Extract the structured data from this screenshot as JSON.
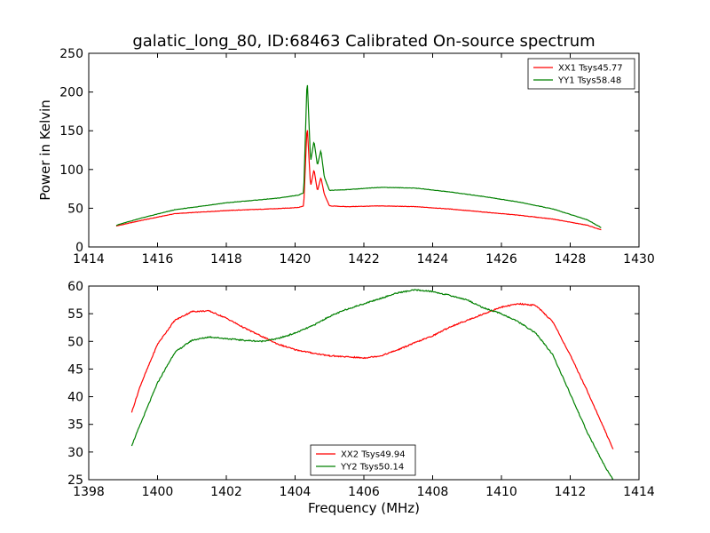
{
  "chart_data": [
    {
      "type": "line",
      "title": "galatic_long_80, ID:68463 Calibrated On-source spectrum",
      "xlabel": "",
      "ylabel": "Power in Kelvin",
      "xlim": [
        1414,
        1430
      ],
      "ylim": [
        0,
        250
      ],
      "xticks": [
        "1414",
        "1416",
        "1418",
        "1420",
        "1422",
        "1424",
        "1426",
        "1428",
        "1430"
      ],
      "yticks": [
        "0",
        "50",
        "100",
        "150",
        "200",
        "250"
      ],
      "grid": false,
      "legend_position": "top-right",
      "series": [
        {
          "name": "XX1 Tsys45.77",
          "color": "#ff0000",
          "x": [
            1414.8,
            1415.5,
            1416.5,
            1418,
            1419.5,
            1420.1,
            1420.25,
            1420.35,
            1420.45,
            1420.55,
            1420.65,
            1420.75,
            1420.85,
            1421.0,
            1421.5,
            1422.5,
            1423.5,
            1424.5,
            1425.5,
            1426.5,
            1427.5,
            1428.5,
            1428.9
          ],
          "y": [
            27,
            34,
            43,
            47,
            49.5,
            51,
            53,
            158,
            78,
            100,
            72,
            90,
            68,
            53,
            52,
            53,
            52,
            49,
            45,
            41,
            36,
            28,
            22
          ]
        },
        {
          "name": "YY1 Tsys58.48",
          "color": "#008000",
          "x": [
            1414.8,
            1415.5,
            1416.5,
            1418,
            1419.5,
            1420.1,
            1420.25,
            1420.35,
            1420.45,
            1420.55,
            1420.65,
            1420.75,
            1420.85,
            1421.0,
            1421.5,
            1422.5,
            1423.5,
            1424.5,
            1425.5,
            1426.5,
            1427.5,
            1428.5,
            1428.9
          ],
          "y": [
            28,
            37,
            48,
            57,
            63,
            67,
            70,
            219,
            110,
            137,
            105,
            125,
            90,
            73,
            74,
            77,
            76,
            71,
            65,
            58,
            49,
            35,
            25
          ]
        }
      ]
    },
    {
      "type": "line",
      "title": "",
      "xlabel": "Frequency (MHz)",
      "ylabel": "",
      "xlim": [
        1398,
        1414
      ],
      "ylim": [
        25,
        60
      ],
      "xticks": [
        "1398",
        "1400",
        "1402",
        "1404",
        "1406",
        "1408",
        "1410",
        "1412",
        "1414"
      ],
      "yticks": [
        "25",
        "30",
        "35",
        "40",
        "45",
        "50",
        "55",
        "60"
      ],
      "grid": false,
      "legend_position": "bottom-center",
      "series": [
        {
          "name": "XX2 Tsys49.94",
          "color": "#ff0000",
          "x": [
            1399.25,
            1399.5,
            1400.0,
            1400.5,
            1401.0,
            1401.5,
            1402.0,
            1402.5,
            1403.0,
            1403.5,
            1404.0,
            1404.5,
            1405.0,
            1405.5,
            1406.0,
            1406.5,
            1407.0,
            1407.5,
            1408.0,
            1408.5,
            1409.0,
            1409.5,
            1410.0,
            1410.5,
            1411.0,
            1411.5,
            1412.0,
            1412.5,
            1413.0,
            1413.25
          ],
          "y": [
            37.2,
            42.0,
            49.5,
            53.8,
            55.4,
            55.5,
            54.2,
            52.5,
            51.0,
            49.5,
            48.5,
            47.9,
            47.4,
            47.2,
            47.0,
            47.4,
            48.5,
            49.8,
            51.0,
            52.6,
            53.8,
            55.0,
            56.2,
            56.8,
            56.5,
            53.5,
            47.5,
            41.0,
            34.0,
            30.5
          ]
        },
        {
          "name": "YY2 Tsys50.14",
          "color": "#008000",
          "x": [
            1399.25,
            1399.5,
            1400.0,
            1400.5,
            1401.0,
            1401.5,
            1402.0,
            1402.5,
            1403.0,
            1403.5,
            1404.0,
            1404.5,
            1405.0,
            1405.5,
            1406.0,
            1406.5,
            1407.0,
            1407.5,
            1408.0,
            1408.5,
            1409.0,
            1409.5,
            1410.0,
            1410.5,
            1411.0,
            1411.5,
            1412.0,
            1412.5,
            1413.0,
            1413.25
          ],
          "y": [
            31.2,
            35.0,
            42.5,
            48.0,
            50.2,
            50.8,
            50.5,
            50.2,
            50.0,
            50.5,
            51.5,
            52.8,
            54.5,
            55.8,
            56.8,
            57.8,
            58.8,
            59.3,
            59.0,
            58.3,
            57.5,
            56.0,
            55.0,
            53.5,
            51.5,
            47.5,
            40.5,
            33.5,
            27.5,
            25.0
          ]
        }
      ]
    }
  ]
}
